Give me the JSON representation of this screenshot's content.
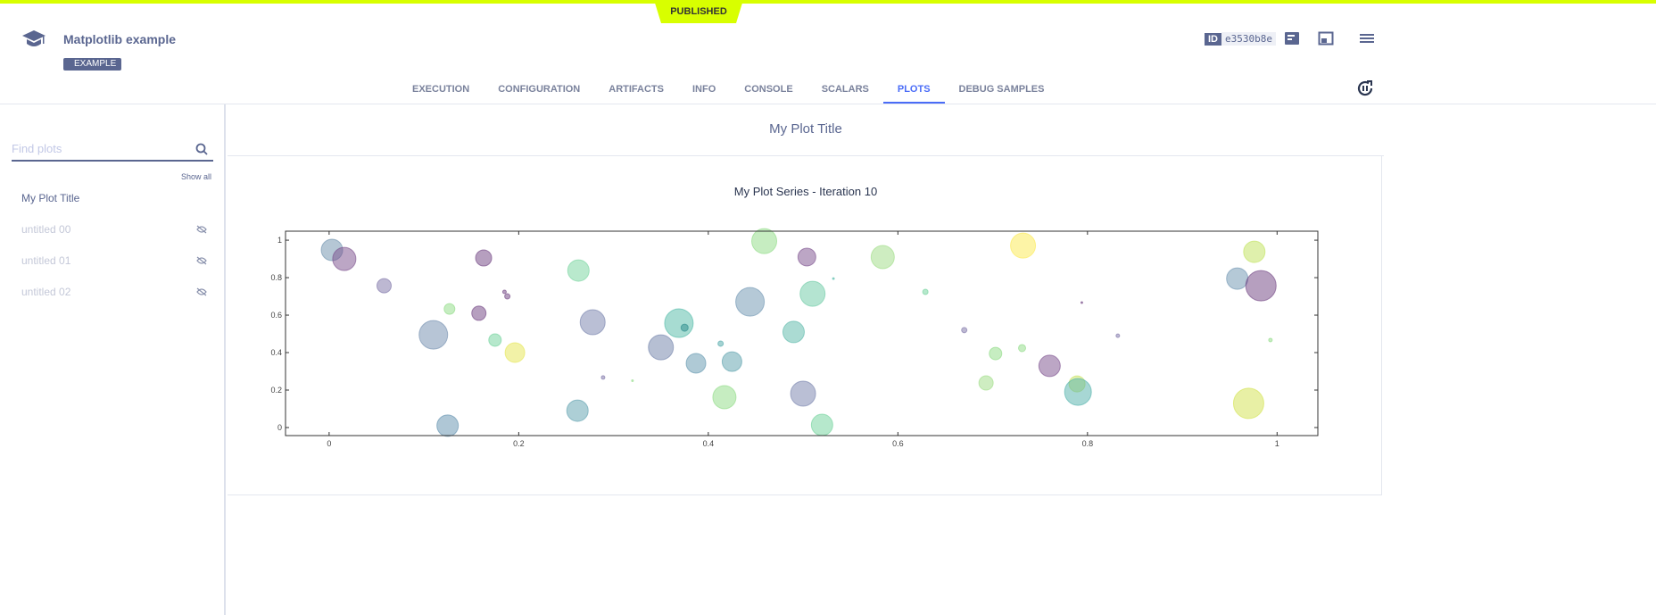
{
  "header": {
    "status": "PUBLISHED",
    "title": "Matplotlib example",
    "tag": "EXAMPLE",
    "id_label": "ID",
    "id_value": "e3530b8e"
  },
  "tabs": [
    {
      "label": "EXECUTION"
    },
    {
      "label": "CONFIGURATION"
    },
    {
      "label": "ARTIFACTS"
    },
    {
      "label": "INFO"
    },
    {
      "label": "CONSOLE"
    },
    {
      "label": "SCALARS"
    },
    {
      "label": "PLOTS",
      "active": true
    },
    {
      "label": "DEBUG SAMPLES"
    }
  ],
  "sidebar": {
    "search_placeholder": "Find plots",
    "show_all": "Show all",
    "items": [
      {
        "label": "My Plot Title",
        "hidden": false
      },
      {
        "label": "untitled 00",
        "hidden": true
      },
      {
        "label": "untitled 01",
        "hidden": true
      },
      {
        "label": "untitled 02",
        "hidden": true
      }
    ]
  },
  "main": {
    "plot_title": "My Plot Title"
  },
  "chart_data": {
    "type": "scatter",
    "title": "My Plot Series - Iteration 10",
    "xlabel": "",
    "ylabel": "",
    "xlim": [
      -0.046,
      1.043
    ],
    "ylim": [
      -0.043,
      1.048
    ],
    "xticks": [
      "0",
      "0.2",
      "0.4",
      "0.6",
      "0.8",
      "1"
    ],
    "yticks": [
      "0",
      "0.2",
      "0.4",
      "0.6",
      "0.8",
      "1"
    ],
    "grid": false,
    "alpha": 0.5,
    "points": [
      {
        "x": 0.003,
        "y": 0.948,
        "size": 12,
        "color": "#6b8fab"
      },
      {
        "x": 0.016,
        "y": 0.9,
        "size": 13,
        "color": "#7a4d8c"
      },
      {
        "x": 0.058,
        "y": 0.757,
        "size": 8,
        "color": "#7c72a6"
      },
      {
        "x": 0.163,
        "y": 0.905,
        "size": 9,
        "color": "#6e3f80"
      },
      {
        "x": 0.185,
        "y": 0.724,
        "size": 2,
        "color": "#6e3f80"
      },
      {
        "x": 0.188,
        "y": 0.7,
        "size": 3,
        "color": "#6e3f80"
      },
      {
        "x": 0.127,
        "y": 0.633,
        "size": 6,
        "color": "#8edb84"
      },
      {
        "x": 0.158,
        "y": 0.61,
        "size": 8,
        "color": "#6e3f80"
      },
      {
        "x": 0.11,
        "y": 0.495,
        "size": 16,
        "color": "#6f8cad"
      },
      {
        "x": 0.175,
        "y": 0.467,
        "size": 7,
        "color": "#6ed29a"
      },
      {
        "x": 0.196,
        "y": 0.4,
        "size": 11,
        "color": "#e5e650"
      },
      {
        "x": 0.125,
        "y": 0.01,
        "size": 12,
        "color": "#5f8fae"
      },
      {
        "x": 0.263,
        "y": 0.838,
        "size": 12,
        "color": "#74d39c"
      },
      {
        "x": 0.278,
        "y": 0.562,
        "size": 14,
        "color": "#7580ac"
      },
      {
        "x": 0.289,
        "y": 0.267,
        "size": 2,
        "color": "#7c72a6"
      },
      {
        "x": 0.32,
        "y": 0.25,
        "size": 1,
        "color": "#8edb84"
      },
      {
        "x": 0.262,
        "y": 0.09,
        "size": 12,
        "color": "#5c9fae"
      },
      {
        "x": 0.35,
        "y": 0.428,
        "size": 14,
        "color": "#6e7fa8"
      },
      {
        "x": 0.369,
        "y": 0.557,
        "size": 16,
        "color": "#4fb9a6"
      },
      {
        "x": 0.375,
        "y": 0.533,
        "size": 4,
        "color": "#2a8a8a"
      },
      {
        "x": 0.387,
        "y": 0.343,
        "size": 11,
        "color": "#5f95ad"
      },
      {
        "x": 0.413,
        "y": 0.448,
        "size": 3,
        "color": "#4aa5a6"
      },
      {
        "x": 0.425,
        "y": 0.352,
        "size": 11,
        "color": "#5aa0ab"
      },
      {
        "x": 0.417,
        "y": 0.162,
        "size": 13,
        "color": "#8edb84"
      },
      {
        "x": 0.444,
        "y": 0.671,
        "size": 16,
        "color": "#6c93b0"
      },
      {
        "x": 0.459,
        "y": 0.995,
        "size": 14,
        "color": "#8edb84"
      },
      {
        "x": 0.504,
        "y": 0.91,
        "size": 10,
        "color": "#7a4d8c"
      },
      {
        "x": 0.51,
        "y": 0.714,
        "size": 14,
        "color": "#6ac9a3"
      },
      {
        "x": 0.49,
        "y": 0.51,
        "size": 12,
        "color": "#58b8a8"
      },
      {
        "x": 0.5,
        "y": 0.181,
        "size": 14,
        "color": "#7580ac"
      },
      {
        "x": 0.52,
        "y": 0.014,
        "size": 12,
        "color": "#6ed29a"
      },
      {
        "x": 0.532,
        "y": 0.795,
        "size": 1,
        "color": "#4fb9a6"
      },
      {
        "x": 0.584,
        "y": 0.91,
        "size": 13,
        "color": "#9ddc84"
      },
      {
        "x": 0.629,
        "y": 0.724,
        "size": 3,
        "color": "#6ed29a"
      },
      {
        "x": 0.67,
        "y": 0.52,
        "size": 3,
        "color": "#7c72a6"
      },
      {
        "x": 0.703,
        "y": 0.395,
        "size": 7,
        "color": "#8edb84"
      },
      {
        "x": 0.731,
        "y": 0.424,
        "size": 4,
        "color": "#8edb84"
      },
      {
        "x": 0.693,
        "y": 0.238,
        "size": 8,
        "color": "#9ddc84"
      },
      {
        "x": 0.732,
        "y": 0.971,
        "size": 14,
        "color": "#fbe94e"
      },
      {
        "x": 0.76,
        "y": 0.329,
        "size": 12,
        "color": "#7a4d8c"
      },
      {
        "x": 0.794,
        "y": 0.667,
        "size": 1,
        "color": "#6e3f80"
      },
      {
        "x": 0.789,
        "y": 0.233,
        "size": 9,
        "color": "#c6e25a"
      },
      {
        "x": 0.79,
        "y": 0.19,
        "size": 15,
        "color": "#4fb0aa"
      },
      {
        "x": 0.832,
        "y": 0.49,
        "size": 2,
        "color": "#7c72a6"
      },
      {
        "x": 0.958,
        "y": 0.795,
        "size": 12,
        "color": "#6c93b0"
      },
      {
        "x": 0.976,
        "y": 0.938,
        "size": 12,
        "color": "#c0e25a"
      },
      {
        "x": 0.983,
        "y": 0.757,
        "size": 17,
        "color": "#6e3f80"
      },
      {
        "x": 0.993,
        "y": 0.467,
        "size": 2,
        "color": "#8edb84"
      },
      {
        "x": 0.97,
        "y": 0.129,
        "size": 17,
        "color": "#d2e24c"
      }
    ]
  }
}
